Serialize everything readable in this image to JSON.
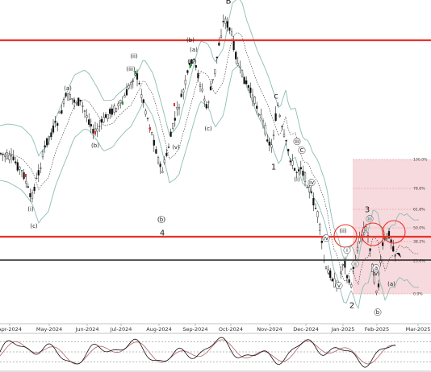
{
  "chart_data": {
    "type": "candlestick",
    "x_axis_labels": [
      "Apr-2024",
      "May-2024",
      "Jun-2024",
      "Jul-2024",
      "Aug-2024",
      "Sep-2024",
      "Oct-2024",
      "Nov-2024",
      "Dec-2024",
      "Jan-2025",
      "Feb-2025",
      "Mar-2025"
    ],
    "fibonacci_levels": [
      "100.0%",
      "78.6%",
      "61.8%",
      "50.0%",
      "38.2%",
      "23.6%",
      "0.0%"
    ],
    "wave_labels": [
      "(a)",
      "(b)",
      "(c)",
      "(i)",
      "(ii)",
      "(iii)",
      "(iv)",
      "(v)",
      "(a)",
      "(b)",
      "(c)",
      "iv",
      "v",
      "i",
      "ii",
      "iii",
      "a",
      "b",
      "c",
      "1",
      "2",
      "3",
      "4",
      "B",
      "C",
      "iv",
      "v",
      "iii",
      "(i)",
      "(ii)",
      "(v)",
      "(a)",
      "(b)"
    ],
    "horizontal_lines": [
      {
        "role": "resistance",
        "color": "#e8322a"
      },
      {
        "role": "support",
        "color": "#e8322a"
      },
      {
        "role": "support",
        "color": "#222222"
      }
    ],
    "colors": {
      "candles": "#111111",
      "bands": "#8fbcb5",
      "ma": "#333333",
      "fib_zone": "#f7dadd",
      "highlight_circle": "#e8322a",
      "oscillator_fast": "#111111",
      "oscillator_slow": "#b0636a"
    },
    "oscillator": {
      "levels": [
        20,
        50,
        80
      ],
      "range": [
        0,
        100
      ]
    }
  }
}
